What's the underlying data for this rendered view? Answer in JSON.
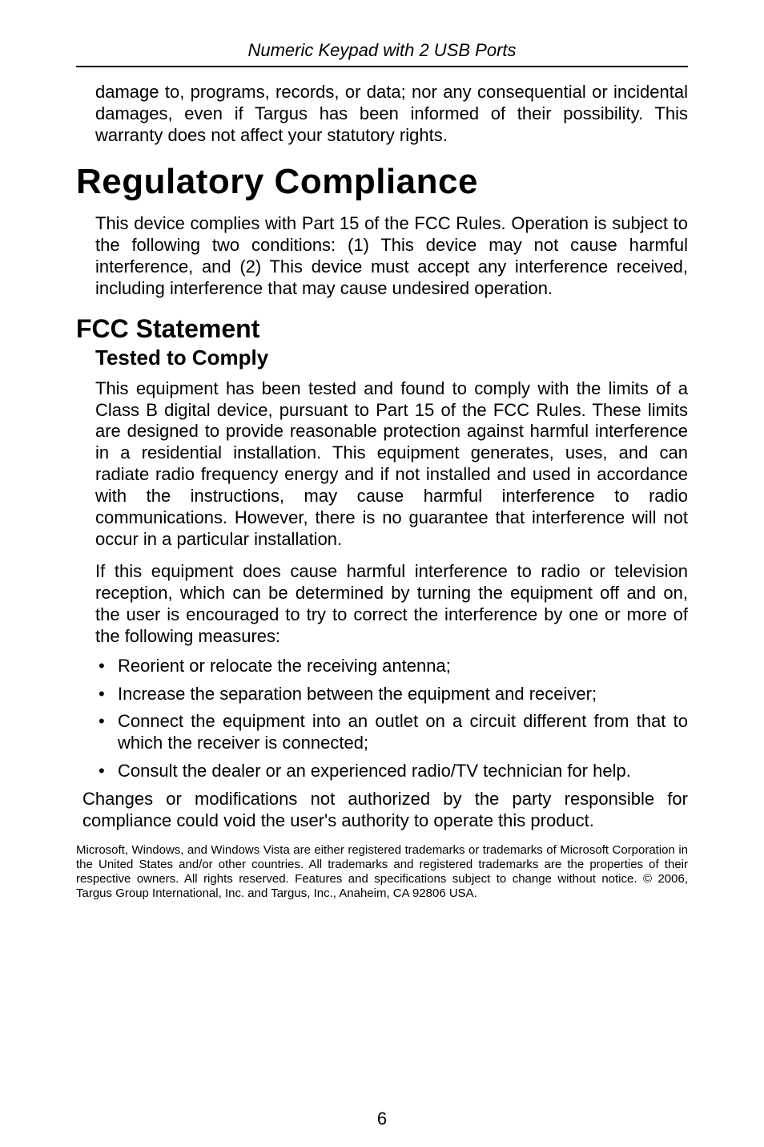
{
  "header": "Numeric Keypad with 2 USB Ports",
  "intro_para": "damage to, programs, records, or data; nor any consequential or incidental damages, even if Targus has been informed of their possibility. This warranty does not affect your statutory rights.",
  "title": "Regulatory Compliance",
  "compliance_para": "This device complies with Part 15 of the FCC Rules. Operation is subject to the following two conditions: (1) This device may not cause harmful interference, and (2) This device must accept any interference received, including interference that may cause undesired operation.",
  "fcc_heading": "FCC Statement",
  "tested_heading": "Tested to Comply",
  "tested_para1": "This equipment has been tested and found to comply with the limits of a Class B digital device, pursuant to Part 15 of the FCC Rules. These limits are designed to provide reasonable protection against harmful interference in a residential installation. This equipment generates, uses, and can radiate radio frequency energy and if not installed and used in accordance with the instructions, may cause harmful interference to radio communications. However, there is no guarantee that interference will not occur in a particular installation.",
  "tested_para2": "If this equipment does cause harmful interference to radio or television reception, which can be determined by turning the equipment off and on, the user is encouraged to try to correct the interference by one or more of the following measures:",
  "bullets": [
    "Reorient or relocate the receiving antenna;",
    "Increase the separation between the equipment and receiver;",
    "Connect the equipment into an outlet on a circuit different from that to which the receiver is connected;",
    "Consult the dealer or an experienced radio/TV technician for help."
  ],
  "closing_para": "Changes or modifications not authorized by the party responsible for compliance could void the user's authority to operate this product.",
  "fineprint": "Microsoft, Windows, and Windows Vista are either registered trademarks or trademarks of Microsoft Corporation in the United States and/or other countries.  All trademarks and registered trademarks are the properties of their respective owners.  All rights reserved. Features and specifications subject to change without notice. © 2006, Targus Group International, Inc. and Targus, Inc., Anaheim, CA 92806 USA.",
  "page_number": "6"
}
